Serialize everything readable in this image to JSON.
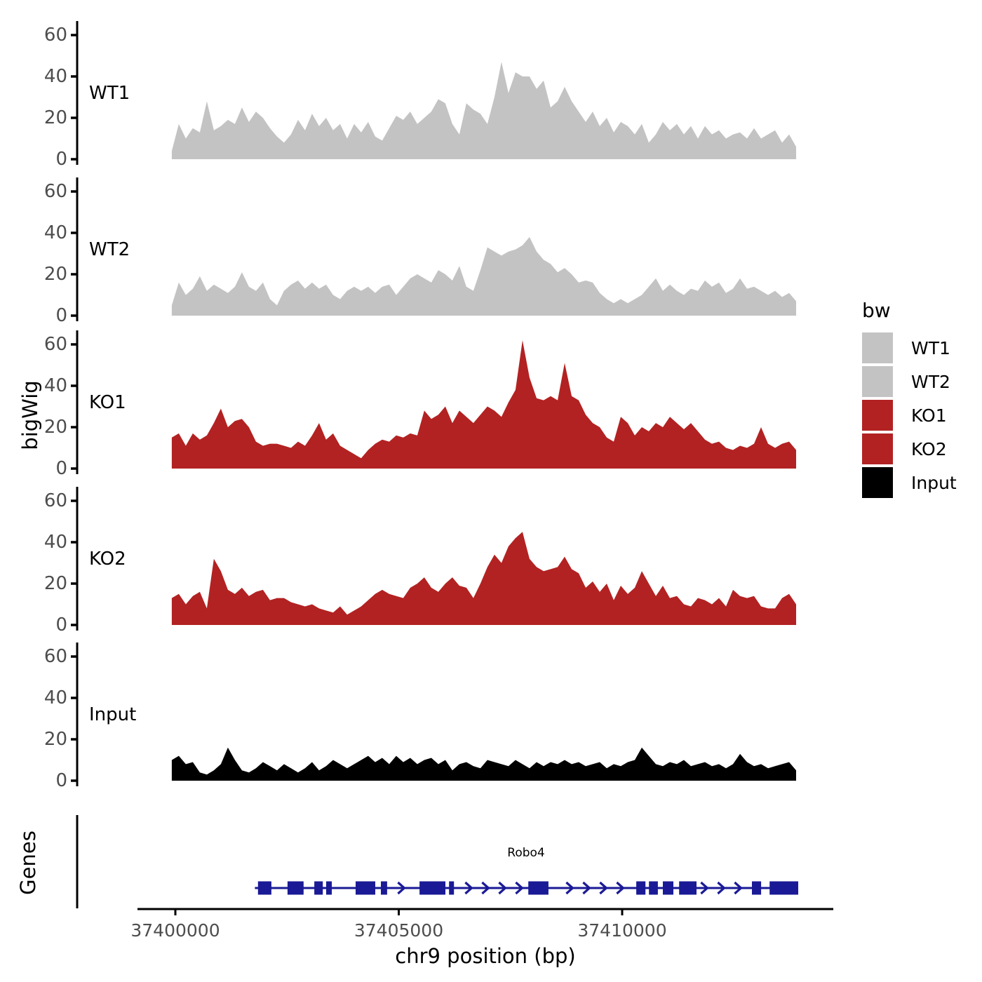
{
  "figure": {
    "y_axis_title": "bigWig",
    "genes_panel_title": "Genes",
    "x_axis_title": "chr9 position (bp)",
    "colors": {
      "wt_gray": "#C3C3C3",
      "ko_red": "#B22222",
      "input_black": "#000000",
      "gene_navy": "#1A1A96",
      "axis_black": "#000000",
      "tick_text_gray": "#4D4D4D"
    }
  },
  "legend": {
    "title": "bw",
    "entries": [
      {
        "label": "WT1",
        "color": "#C3C3C3"
      },
      {
        "label": "WT2",
        "color": "#C3C3C3"
      },
      {
        "label": "KO1",
        "color": "#B22222"
      },
      {
        "label": "KO2",
        "color": "#B22222"
      },
      {
        "label": "Input",
        "color": "#000000"
      }
    ]
  },
  "chart_data": {
    "type": "area",
    "title": "",
    "xlabel": "chr9 position (bp)",
    "ylabel": "bigWig",
    "x_axis": {
      "ticks": [
        {
          "pos": 37400000,
          "label": "37400000"
        },
        {
          "pos": 37405000,
          "label": "37405000"
        },
        {
          "pos": 37410000,
          "label": "37410000"
        }
      ],
      "range": [
        37399150,
        37414700
      ]
    },
    "y_axis": {
      "ticks": [
        0,
        20,
        40,
        60
      ],
      "ylim": [
        0,
        66
      ]
    },
    "x_start": 37399920,
    "x_step": 157,
    "tracks": [
      {
        "name": "WT1",
        "color": "#C3C3C3",
        "values": [
          4,
          17,
          10,
          15,
          13,
          28,
          14,
          16,
          19,
          17,
          25,
          18,
          23,
          20,
          15,
          11,
          8,
          12,
          19,
          14,
          22,
          16,
          20,
          14,
          17,
          10,
          17,
          13,
          18,
          11,
          9,
          15,
          21,
          19,
          23,
          17,
          20,
          23,
          29,
          27,
          17,
          12,
          27,
          24,
          22,
          17,
          30,
          47,
          32,
          42,
          40,
          40,
          34,
          38,
          25,
          28,
          35,
          28,
          23,
          18,
          23,
          16,
          20,
          13,
          18,
          16,
          12,
          17,
          8,
          12,
          18,
          14,
          17,
          12,
          16,
          10,
          16,
          12,
          14,
          10,
          12,
          13,
          10,
          15,
          10,
          12,
          14,
          8,
          12,
          6
        ]
      },
      {
        "name": "WT2",
        "color": "#C3C3C3",
        "values": [
          5,
          16,
          10,
          13,
          19,
          12,
          15,
          13,
          11,
          14,
          21,
          14,
          12,
          16,
          8,
          5,
          12,
          15,
          17,
          13,
          16,
          13,
          15,
          10,
          8,
          12,
          14,
          12,
          14,
          11,
          14,
          15,
          10,
          14,
          18,
          20,
          18,
          16,
          22,
          20,
          17,
          24,
          14,
          12,
          22,
          33,
          31,
          29,
          31,
          32,
          34,
          38,
          31,
          27,
          25,
          21,
          23,
          20,
          16,
          17,
          16,
          11,
          8,
          6,
          8,
          6,
          8,
          10,
          14,
          18,
          12,
          15,
          12,
          10,
          13,
          12,
          17,
          14,
          16,
          11,
          13,
          18,
          13,
          14,
          12,
          10,
          12,
          9,
          11,
          7
        ]
      },
      {
        "name": "KO1",
        "color": "#B22222",
        "values": [
          15,
          17,
          11,
          17,
          14,
          16,
          22,
          29,
          20,
          23,
          24,
          20,
          13,
          11,
          12,
          12,
          11,
          10,
          13,
          11,
          16,
          22,
          14,
          17,
          11,
          9,
          7,
          5,
          9,
          12,
          14,
          13,
          16,
          15,
          17,
          16,
          28,
          24,
          26,
          30,
          22,
          28,
          25,
          22,
          26,
          30,
          28,
          25,
          32,
          38,
          62,
          44,
          34,
          33,
          35,
          33,
          51,
          35,
          33,
          26,
          22,
          20,
          15,
          13,
          25,
          22,
          16,
          20,
          18,
          22,
          20,
          25,
          22,
          19,
          22,
          18,
          14,
          12,
          13,
          10,
          9,
          11,
          10,
          12,
          20,
          12,
          10,
          12,
          13,
          9
        ]
      },
      {
        "name": "KO2",
        "color": "#B22222",
        "values": [
          13,
          15,
          10,
          14,
          16,
          8,
          32,
          26,
          17,
          15,
          18,
          14,
          16,
          17,
          12,
          13,
          13,
          11,
          10,
          9,
          10,
          8,
          7,
          6,
          9,
          5,
          7,
          9,
          12,
          15,
          17,
          15,
          14,
          13,
          18,
          20,
          23,
          18,
          16,
          20,
          23,
          19,
          18,
          13,
          20,
          28,
          34,
          30,
          38,
          42,
          45,
          32,
          28,
          26,
          27,
          28,
          33,
          27,
          25,
          18,
          21,
          16,
          20,
          12,
          19,
          15,
          18,
          26,
          20,
          14,
          19,
          13,
          14,
          10,
          9,
          13,
          12,
          10,
          13,
          9,
          17,
          14,
          13,
          14,
          9,
          8,
          8,
          13,
          15,
          10
        ]
      },
      {
        "name": "Input",
        "color": "#000000",
        "values": [
          10,
          12,
          8,
          9,
          4,
          3,
          5,
          8,
          16,
          10,
          5,
          4,
          6,
          9,
          7,
          5,
          8,
          6,
          4,
          6,
          9,
          5,
          7,
          10,
          8,
          6,
          8,
          10,
          12,
          9,
          11,
          8,
          12,
          9,
          11,
          8,
          10,
          11,
          8,
          10,
          5,
          8,
          9,
          7,
          6,
          10,
          9,
          8,
          7,
          10,
          8,
          6,
          9,
          7,
          9,
          8,
          10,
          8,
          9,
          7,
          8,
          9,
          6,
          8,
          7,
          9,
          10,
          16,
          12,
          8,
          7,
          9,
          8,
          10,
          7,
          8,
          9,
          7,
          8,
          6,
          8,
          13,
          9,
          7,
          8,
          6,
          7,
          8,
          9,
          5
        ]
      }
    ],
    "genes": {
      "panel_title": "Genes",
      "gene": {
        "name": "Robo4",
        "strand": "+",
        "color": "#1A1A96",
        "start": 37401780,
        "end": 37413940,
        "exons": [
          [
            37401850,
            37402150
          ],
          [
            37402510,
            37402870
          ],
          [
            37403110,
            37403300
          ],
          [
            37403375,
            37403500
          ],
          [
            37404035,
            37404475
          ],
          [
            37404600,
            37404740
          ],
          [
            37405465,
            37406045
          ],
          [
            37406125,
            37406235
          ],
          [
            37407900,
            37408350
          ],
          [
            37410315,
            37410520
          ],
          [
            37410600,
            37410800
          ],
          [
            37410910,
            37411145
          ],
          [
            37411275,
            37411665
          ],
          [
            37412905,
            37413110
          ],
          [
            37413300,
            37413940
          ]
        ]
      }
    }
  }
}
